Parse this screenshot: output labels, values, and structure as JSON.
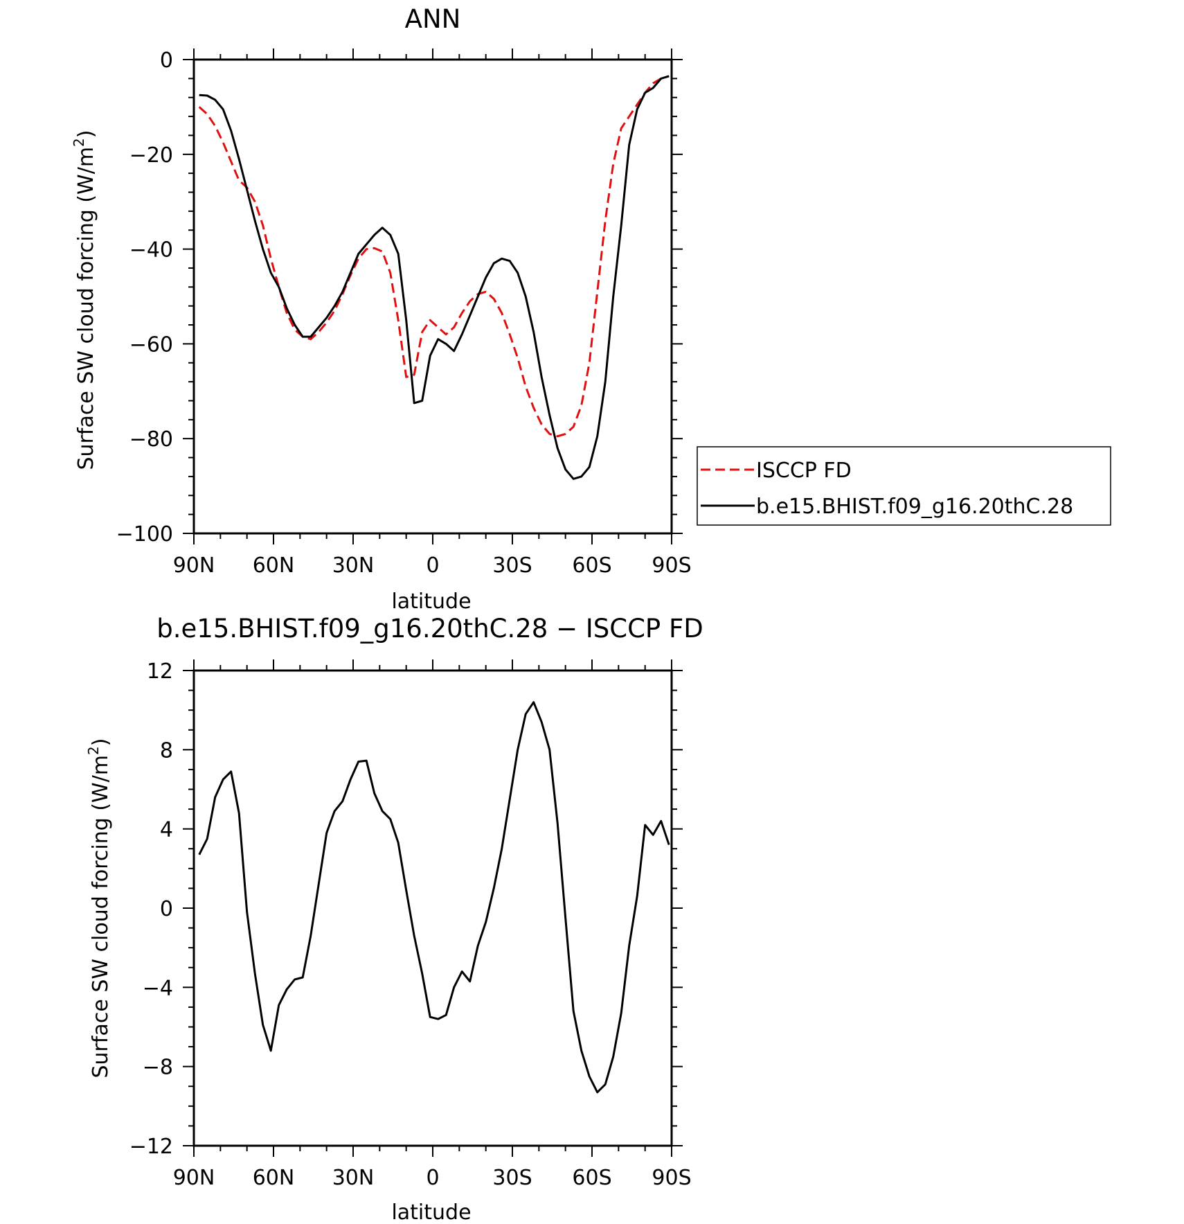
{
  "chart_data": [
    {
      "type": "line",
      "title": "ANN",
      "xlabel": "latitude",
      "ylabel": "Surface SW cloud forcing (W/m²)",
      "ylabel_main": "Surface SW cloud forcing (W/m",
      "ylabel_sup": "2",
      "ylabel_end": ")",
      "xlim": [
        90,
        -90
      ],
      "ylim": [
        -100,
        0
      ],
      "x_tick_values": [
        90,
        60,
        30,
        0,
        -30,
        -60,
        -90
      ],
      "x_tick_labels": [
        "90N",
        "60N",
        "30N",
        "0",
        "30S",
        "60S",
        "90S"
      ],
      "y_tick_values": [
        0,
        -20,
        -40,
        -60,
        -80,
        -100
      ],
      "y_tick_labels": [
        "0",
        "−20",
        "−40",
        "−60",
        "−80",
        "−100"
      ],
      "legend_position": "right",
      "x": [
        88,
        85,
        82,
        79,
        76,
        73,
        70,
        67,
        64,
        61,
        58,
        55,
        52,
        49,
        46,
        43,
        40,
        37,
        34,
        31,
        28,
        25,
        22,
        19,
        16,
        13,
        10,
        7,
        4,
        1,
        -2,
        -5,
        -8,
        -11,
        -14,
        -17,
        -20,
        -23,
        -26,
        -29,
        -32,
        -35,
        -38,
        -41,
        -44,
        -47,
        -50,
        -53,
        -56,
        -59,
        -62,
        -65,
        -68,
        -71,
        -74,
        -77,
        -80,
        -83,
        -86,
        -89
      ],
      "series": [
        {
          "name": "ISCCP FD",
          "color": "#e01010",
          "dash": "dashed",
          "values": [
            -10,
            -11.5,
            -14,
            -17.5,
            -21.5,
            -25.5,
            -27,
            -30,
            -35,
            -42,
            -48,
            -53.5,
            -57,
            -58.5,
            -59,
            -57.5,
            -55.5,
            -53,
            -49.5,
            -45.5,
            -42,
            -40,
            -39.8,
            -40.5,
            -45,
            -55,
            -67,
            -66.5,
            -57.5,
            -55,
            -56.5,
            -58,
            -56.5,
            -53.5,
            -51,
            -49.5,
            -49,
            -50.5,
            -53.5,
            -58,
            -63,
            -69,
            -73.5,
            -77,
            -79,
            -79.5,
            -79,
            -77.5,
            -73,
            -64,
            -49,
            -34,
            -22,
            -14.5,
            -12,
            -9.5,
            -7,
            -5,
            -4,
            -3.5
          ]
        },
        {
          "name": "b.e15.BHIST.f09_g16.20thC.28",
          "color": "#000000",
          "dash": "solid",
          "values": [
            -7.5,
            -7.6,
            -8.5,
            -10.5,
            -15,
            -21,
            -27.5,
            -34,
            -40,
            -45,
            -48,
            -52.5,
            -56,
            -58.5,
            -58.5,
            -56.5,
            -54.5,
            -52,
            -49,
            -45,
            -41,
            -39,
            -37,
            -35.5,
            -37,
            -41,
            -55,
            -72.5,
            -72,
            -62.5,
            -59,
            -60,
            -61.5,
            -58,
            -54,
            -50,
            -46,
            -43,
            -42,
            -42.5,
            -45,
            -50,
            -57.5,
            -67,
            -75,
            -82,
            -86.5,
            -88.5,
            -88,
            -86,
            -79.5,
            -68,
            -50,
            -35,
            -18,
            -10.5,
            -7,
            -6,
            -4,
            -3.5
          ]
        }
      ]
    },
    {
      "type": "line",
      "title": "b.e15.BHIST.f09_g16.20thC.28 − ISCCP FD",
      "xlabel": "latitude",
      "ylabel": "Surface SW cloud forcing (W/m²)",
      "ylabel_main": "Surface SW cloud forcing (W/m",
      "ylabel_sup": "2",
      "ylabel_end": ")",
      "xlim": [
        90,
        -90
      ],
      "ylim": [
        -12,
        12
      ],
      "x_tick_values": [
        90,
        60,
        30,
        0,
        -30,
        -60,
        -90
      ],
      "x_tick_labels": [
        "90N",
        "60N",
        "30N",
        "0",
        "30S",
        "60S",
        "90S"
      ],
      "y_tick_values": [
        12,
        8,
        4,
        0,
        -4,
        -8,
        -12
      ],
      "y_tick_labels": [
        "12",
        "8",
        "4",
        "0",
        "−4",
        "−8",
        "−12"
      ],
      "x": [
        88,
        85,
        82,
        79,
        76,
        73,
        70,
        67,
        64,
        61,
        58,
        55,
        52,
        49,
        46,
        43,
        40,
        37,
        34,
        31,
        28,
        25,
        22,
        19,
        16,
        13,
        10,
        7,
        4,
        1,
        -2,
        -5,
        -8,
        -11,
        -14,
        -17,
        -20,
        -23,
        -26,
        -29,
        -32,
        -35,
        -38,
        -41,
        -44,
        -47,
        -50,
        -53,
        -56,
        -59,
        -62,
        -65,
        -68,
        -71,
        -74,
        -77,
        -80,
        -83,
        -86,
        -89
      ],
      "series": [
        {
          "name": "",
          "color": "#000000",
          "dash": "solid",
          "values": [
            2.7,
            3.5,
            5.6,
            6.5,
            6.9,
            4.8,
            -0.2,
            -3.3,
            -5.9,
            -7.2,
            -4.9,
            -4.1,
            -3.6,
            -3.5,
            -1.4,
            1.2,
            3.8,
            4.9,
            5.4,
            6.5,
            7.4,
            7.45,
            5.8,
            4.9,
            4.5,
            3.3,
            0.9,
            -1.4,
            -3.3,
            -5.5,
            -5.6,
            -5.4,
            -4.0,
            -3.2,
            -3.7,
            -1.9,
            -0.7,
            1.0,
            3.0,
            5.5,
            8.0,
            9.8,
            10.4,
            9.4,
            8.0,
            4.3,
            -0.5,
            -5.2,
            -7.2,
            -8.5,
            -9.3,
            -8.9,
            -7.5,
            -5.3,
            -1.9,
            0.6,
            4.2,
            3.7,
            4.4,
            3.2
          ]
        }
      ]
    }
  ]
}
